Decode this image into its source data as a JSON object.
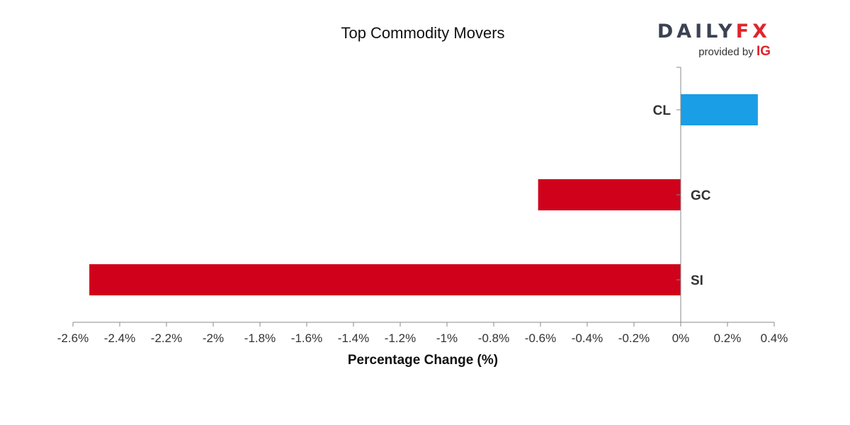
{
  "chart_data": {
    "type": "bar",
    "orientation": "horizontal",
    "title": "Top Commodity Movers",
    "xlabel": "Percentage Change (%)",
    "ylabel": "",
    "categories": [
      "CL",
      "GC",
      "SI"
    ],
    "values": [
      0.33,
      -0.61,
      -2.53
    ],
    "xlim": [
      -2.6,
      0.4
    ],
    "x_ticks": [
      -2.6,
      -2.4,
      -2.2,
      -2.0,
      -1.8,
      -1.6,
      -1.4,
      -1.2,
      -1.0,
      -0.8,
      -0.6,
      -0.4,
      -0.2,
      0,
      0.2,
      0.4
    ],
    "x_tick_labels": [
      "-2.6%",
      "-2.4%",
      "-2.2%",
      "-2%",
      "-1.8%",
      "-1.6%",
      "-1.4%",
      "-1.2%",
      "-1%",
      "-0.8%",
      "-0.6%",
      "-0.4%",
      "-0.2%",
      "0%",
      "0.2%",
      "0.4%"
    ],
    "grid": false,
    "legend": "none",
    "colors": {
      "positive": "#1a9ee5",
      "negative": "#d0021b",
      "axis": "#888888"
    }
  },
  "logo": {
    "brand_left": "DAILY",
    "brand_right": "FX",
    "provided_by": "provided by",
    "ig": "IG"
  }
}
